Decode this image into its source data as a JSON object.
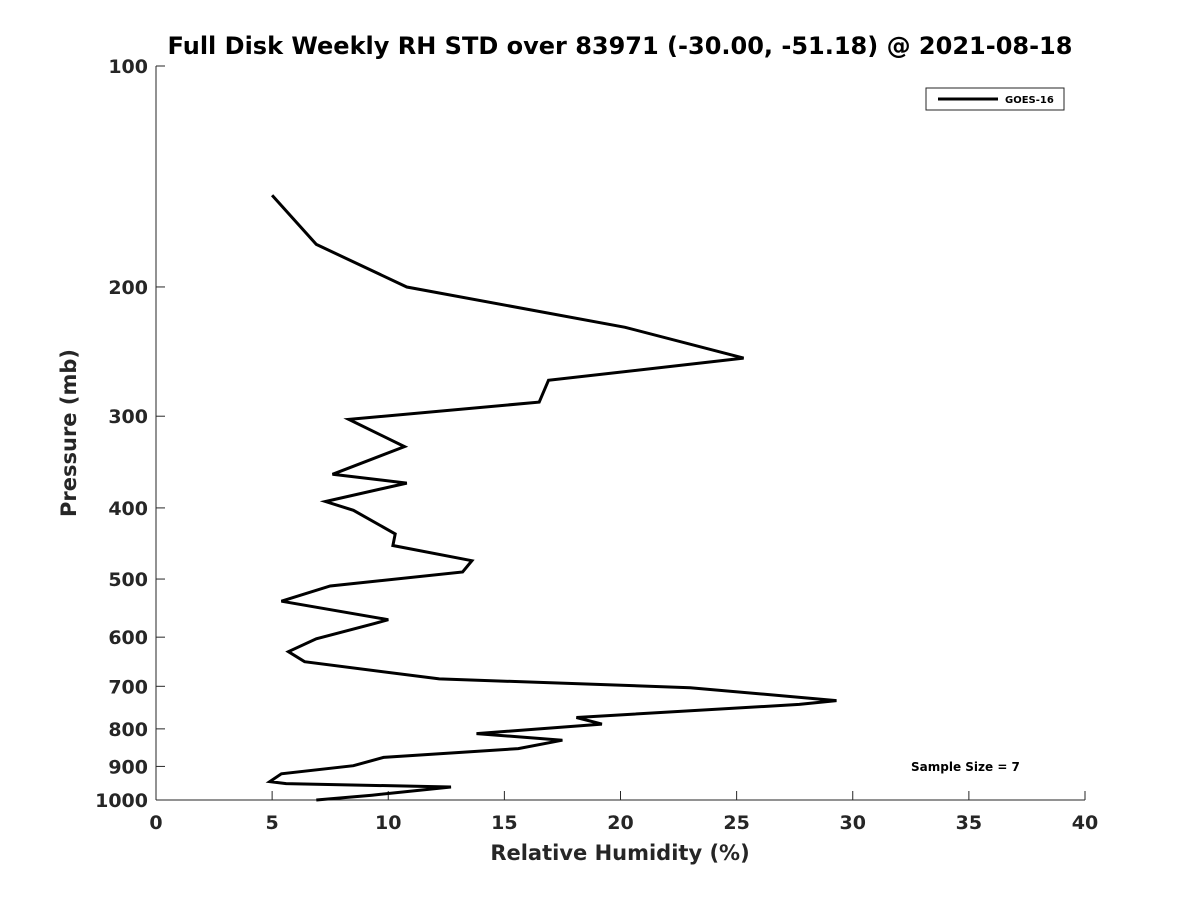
{
  "chart_data": {
    "type": "line",
    "title": "Full Disk Weekly RH STD over 83971 (-30.00, -51.18) @ 2021-08-18",
    "xlabel": "Relative Humidity (%)",
    "ylabel": "Pressure (mb)",
    "xlim": [
      0,
      40
    ],
    "ylim": [
      100,
      1000
    ],
    "yscale": "log",
    "reverse_y": true,
    "xticks": [
      0,
      5,
      10,
      15,
      20,
      25,
      30,
      35,
      40
    ],
    "xtick_labels": [
      "0",
      "5",
      "10",
      "15",
      "20",
      "25",
      "30",
      "35",
      "40"
    ],
    "yticks": [
      100,
      200,
      300,
      400,
      500,
      600,
      700,
      800,
      900,
      1000
    ],
    "ytick_labels": [
      "100",
      "200",
      "300",
      "400",
      "500",
      "600",
      "700",
      "800",
      "900",
      "1000"
    ],
    "grid": false,
    "legend": {
      "position": "top-right"
    },
    "series": [
      {
        "name": "GOES-16",
        "color": "#000000",
        "x": [
          5.0,
          6.9,
          10.8,
          20.2,
          25.3,
          16.9,
          16.5,
          8.3,
          10.7,
          7.6,
          10.8,
          7.3,
          8.5,
          10.3,
          10.2,
          13.6,
          13.2,
          7.5,
          5.4,
          10.0,
          9.4,
          6.9,
          5.7,
          6.4,
          12.2,
          23.0,
          29.3,
          27.7,
          18.1,
          19.2,
          13.8,
          17.5,
          15.6,
          9.8,
          8.5,
          5.4,
          4.9,
          5.6,
          12.7,
          9.3,
          6.9
        ],
        "y": [
          150,
          175,
          200,
          227,
          250,
          268,
          287,
          303,
          330,
          360,
          370,
          392,
          403,
          434,
          450,
          472,
          489,
          511,
          536,
          568,
          575,
          603,
          628,
          648,
          684,
          703,
          732,
          741,
          772,
          788,
          812,
          829,
          851,
          875,
          898,
          921,
          944,
          950,
          960,
          985,
          1000
        ]
      }
    ],
    "annotation": "Sample Size = 7"
  }
}
